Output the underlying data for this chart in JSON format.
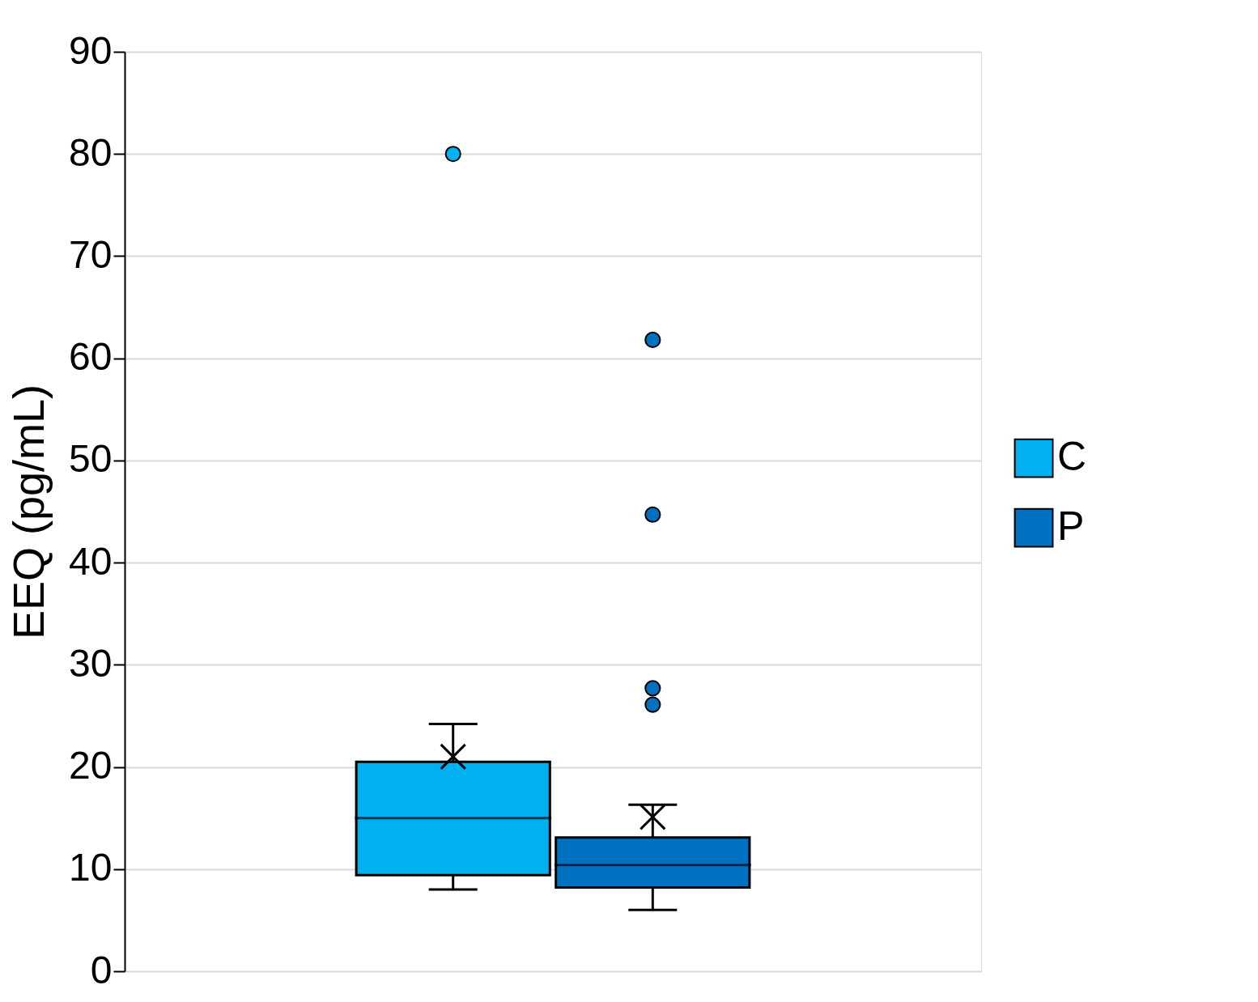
{
  "chart_data": {
    "type": "box",
    "ylabel": "EEQ (pg/mL)",
    "categories": [
      null
    ],
    "ylim": [
      0,
      90
    ],
    "yticks": [
      0,
      10,
      20,
      30,
      40,
      50,
      60,
      70,
      80,
      90
    ],
    "grid": "y",
    "legend": "right",
    "series": [
      {
        "name": "C",
        "color": "#00b0f0",
        "boxes": [
          {
            "low": 8.0,
            "q1": 9.4,
            "median": 15.0,
            "q3": 20.5,
            "high": 24.2,
            "mean": 21.0,
            "outliers": [
              80.0
            ]
          }
        ]
      },
      {
        "name": "P",
        "color": "#0070c0",
        "boxes": [
          {
            "low": 6.0,
            "q1": 8.2,
            "median": 10.4,
            "q3": 13.1,
            "high": 16.3,
            "mean": 15.1,
            "outliers": [
              61.8,
              44.7,
              27.7,
              26.1
            ]
          }
        ]
      }
    ]
  }
}
